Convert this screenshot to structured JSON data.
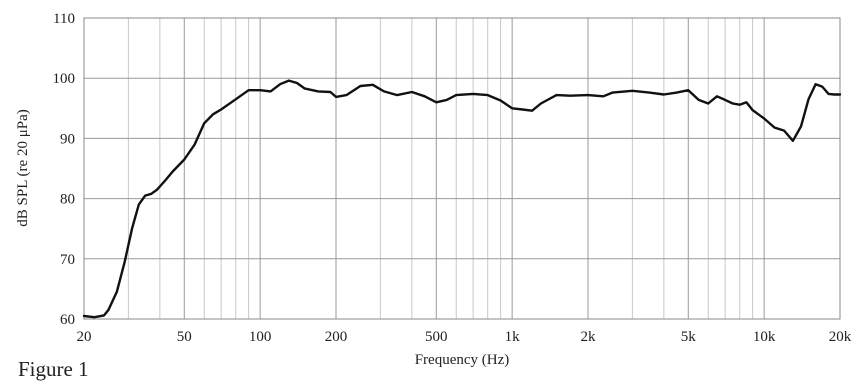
{
  "page": {
    "top_fragment": "",
    "bottom_fragment": "Figure 1"
  },
  "chart_data": {
    "type": "line",
    "title": "",
    "xlabel": "Frequency (Hz)",
    "ylabel": "dB SPL (re 20 μPa)",
    "xscale": "log",
    "xlim": [
      20,
      20000
    ],
    "ylim": [
      60,
      110
    ],
    "grid": true,
    "yticks": [
      60,
      70,
      80,
      90,
      100,
      110
    ],
    "ytick_labels": [
      "60",
      "70",
      "80",
      "90",
      "100",
      "110"
    ],
    "xticks": [
      20,
      50,
      100,
      200,
      500,
      1000,
      2000,
      5000,
      10000,
      20000
    ],
    "xtick_labels": [
      "20",
      "50",
      "100",
      "200",
      "500",
      "1k",
      "2k",
      "5k",
      "10k",
      "20k"
    ],
    "series": [
      {
        "color": "#111111",
        "x": [
          20,
          22,
          24,
          25,
          27,
          29,
          31,
          33,
          35,
          37,
          39,
          42,
          45,
          50,
          55,
          60,
          65,
          70,
          80,
          90,
          100,
          110,
          120,
          130,
          140,
          150,
          170,
          190,
          200,
          220,
          250,
          280,
          310,
          350,
          400,
          450,
          500,
          550,
          600,
          700,
          800,
          900,
          1000,
          1100,
          1200,
          1300,
          1500,
          1700,
          2000,
          2300,
          2500,
          3000,
          3500,
          4000,
          4500,
          5000,
          5500,
          6000,
          6500,
          7000,
          7500,
          8000,
          8500,
          9000,
          10000,
          11000,
          12000,
          13000,
          14000,
          15000,
          16000,
          17000,
          18000,
          19000,
          20000
        ],
        "y": [
          60.5,
          60.3,
          60.6,
          61.5,
          64.5,
          69.5,
          75,
          79,
          80.5,
          80.8,
          81.5,
          83,
          84.5,
          86.5,
          89,
          92.5,
          94,
          94.8,
          96.5,
          98,
          98,
          97.8,
          99,
          99.6,
          99.2,
          98.3,
          97.8,
          97.7,
          96.9,
          97.2,
          98.7,
          98.9,
          97.8,
          97.2,
          97.7,
          97,
          96,
          96.4,
          97.2,
          97.4,
          97.2,
          96.3,
          95,
          94.8,
          94.6,
          95.8,
          97.2,
          97.1,
          97.2,
          97,
          97.6,
          97.9,
          97.6,
          97.3,
          97.6,
          98,
          96.4,
          95.8,
          97,
          96.4,
          95.8,
          95.6,
          96,
          94.7,
          93.3,
          91.8,
          91.3,
          89.6,
          92,
          96.5,
          99,
          98.6,
          97.4,
          97.3,
          97.3
        ]
      }
    ]
  }
}
